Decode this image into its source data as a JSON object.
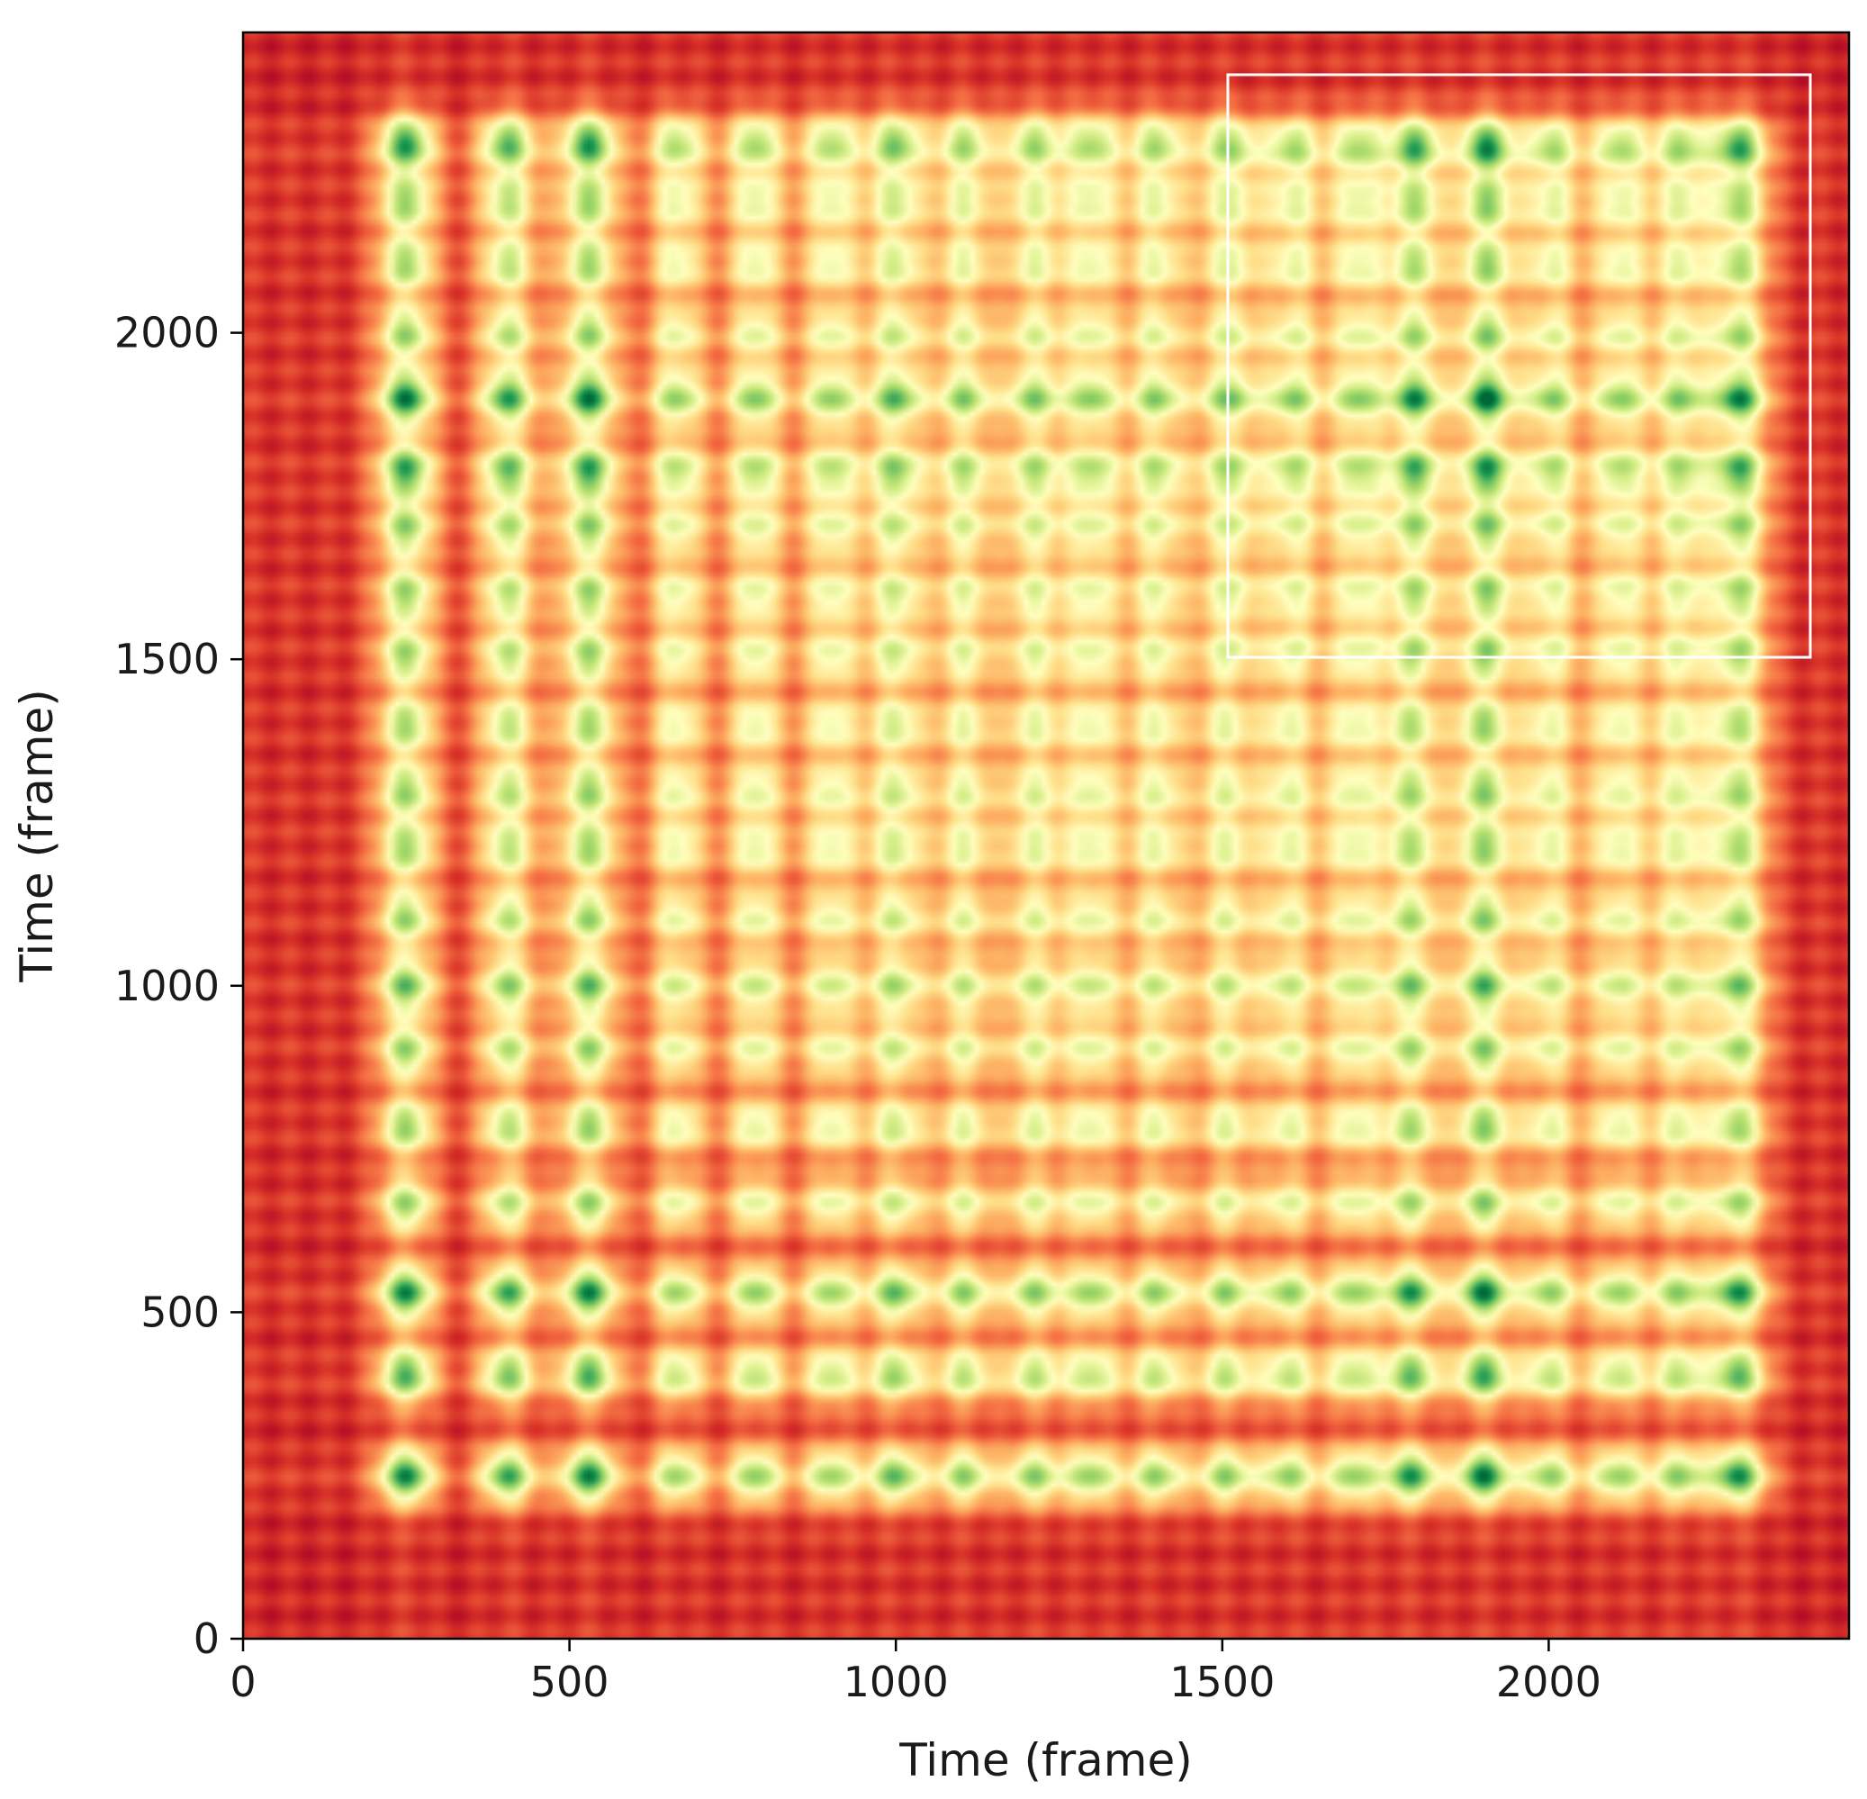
{
  "chart_data": {
    "type": "heatmap",
    "title": "",
    "xlabel": "Time (frame)",
    "ylabel": "Time (frame)",
    "xlim": [
      0,
      2460
    ],
    "ylim": [
      0,
      2460
    ],
    "xticks": [
      0,
      500,
      1000,
      1500,
      2000
    ],
    "yticks": [
      0,
      500,
      1000,
      1500,
      2000
    ],
    "colormap": "RdYlGn",
    "colors": {
      "low": "#a50026",
      "mid": "#ffffbf",
      "high": "#006837",
      "inset_border": "#ffffff"
    },
    "event_frames": [
      250,
      405,
      530,
      665,
      785,
      900,
      1000,
      1105,
      1210,
      1300,
      1400,
      1505,
      1600,
      1700,
      1790,
      1900,
      2000,
      2105,
      2200,
      2290
    ],
    "event_strength": [
      0.85,
      0.7,
      0.85,
      0.45,
      0.5,
      0.45,
      0.6,
      0.45,
      0.45,
      0.45,
      0.45,
      0.45,
      0.45,
      0.45,
      0.75,
      0.9,
      0.45,
      0.45,
      0.45,
      0.8
    ],
    "inset": {
      "region_x": [
        1500,
        2400
      ],
      "region_y": [
        1500,
        2400
      ],
      "border": true
    },
    "grid": false,
    "legend": "none"
  }
}
